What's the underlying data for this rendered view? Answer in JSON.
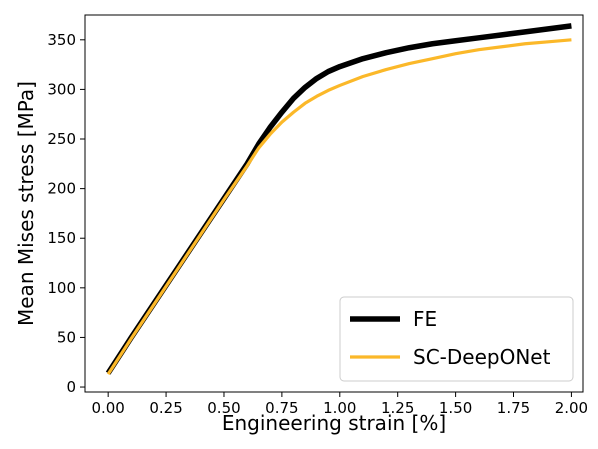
{
  "chart_data": {
    "type": "line",
    "title": "",
    "xlabel": "Engineering strain [%]",
    "ylabel": "Mean Mises stress [MPa]",
    "xlim": [
      -0.1,
      2.05
    ],
    "ylim": [
      -5,
      375
    ],
    "xticks": [
      0.0,
      0.25,
      0.5,
      0.75,
      1.0,
      1.25,
      1.5,
      1.75,
      2.0
    ],
    "xtick_labels": [
      "0.00",
      "0.25",
      "0.50",
      "0.75",
      "1.00",
      "1.25",
      "1.50",
      "1.75",
      "2.00"
    ],
    "yticks": [
      0,
      50,
      100,
      150,
      200,
      250,
      300,
      350
    ],
    "ytick_labels": [
      "0",
      "50",
      "100",
      "150",
      "200",
      "250",
      "300",
      "350"
    ],
    "grid": false,
    "legend_position": "bottom-right",
    "series": [
      {
        "name": "FE",
        "color": "#000000",
        "x": [
          0.0,
          0.1,
          0.2,
          0.3,
          0.4,
          0.5,
          0.6,
          0.65,
          0.7,
          0.75,
          0.8,
          0.85,
          0.9,
          0.95,
          1.0,
          1.1,
          1.2,
          1.3,
          1.4,
          1.5,
          1.6,
          1.7,
          1.8,
          1.9,
          2.0
        ],
        "y": [
          14,
          50,
          85,
          120,
          155,
          190,
          225,
          245,
          262,
          277,
          291,
          302,
          311,
          318,
          323,
          331,
          337,
          342,
          346,
          349,
          352,
          355,
          358,
          361,
          364
        ]
      },
      {
        "name": "SC-DeepONet",
        "color": "#fbb829",
        "x": [
          0.0,
          0.1,
          0.2,
          0.3,
          0.4,
          0.5,
          0.6,
          0.65,
          0.7,
          0.75,
          0.8,
          0.85,
          0.9,
          0.95,
          1.0,
          1.1,
          1.2,
          1.3,
          1.4,
          1.5,
          1.6,
          1.7,
          1.8,
          1.9,
          2.0
        ],
        "y": [
          13,
          49,
          84,
          119,
          154,
          189,
          223,
          241,
          255,
          267,
          277,
          286,
          293,
          299,
          304,
          313,
          320,
          326,
          331,
          336,
          340,
          343,
          346,
          348,
          350
        ]
      }
    ]
  }
}
